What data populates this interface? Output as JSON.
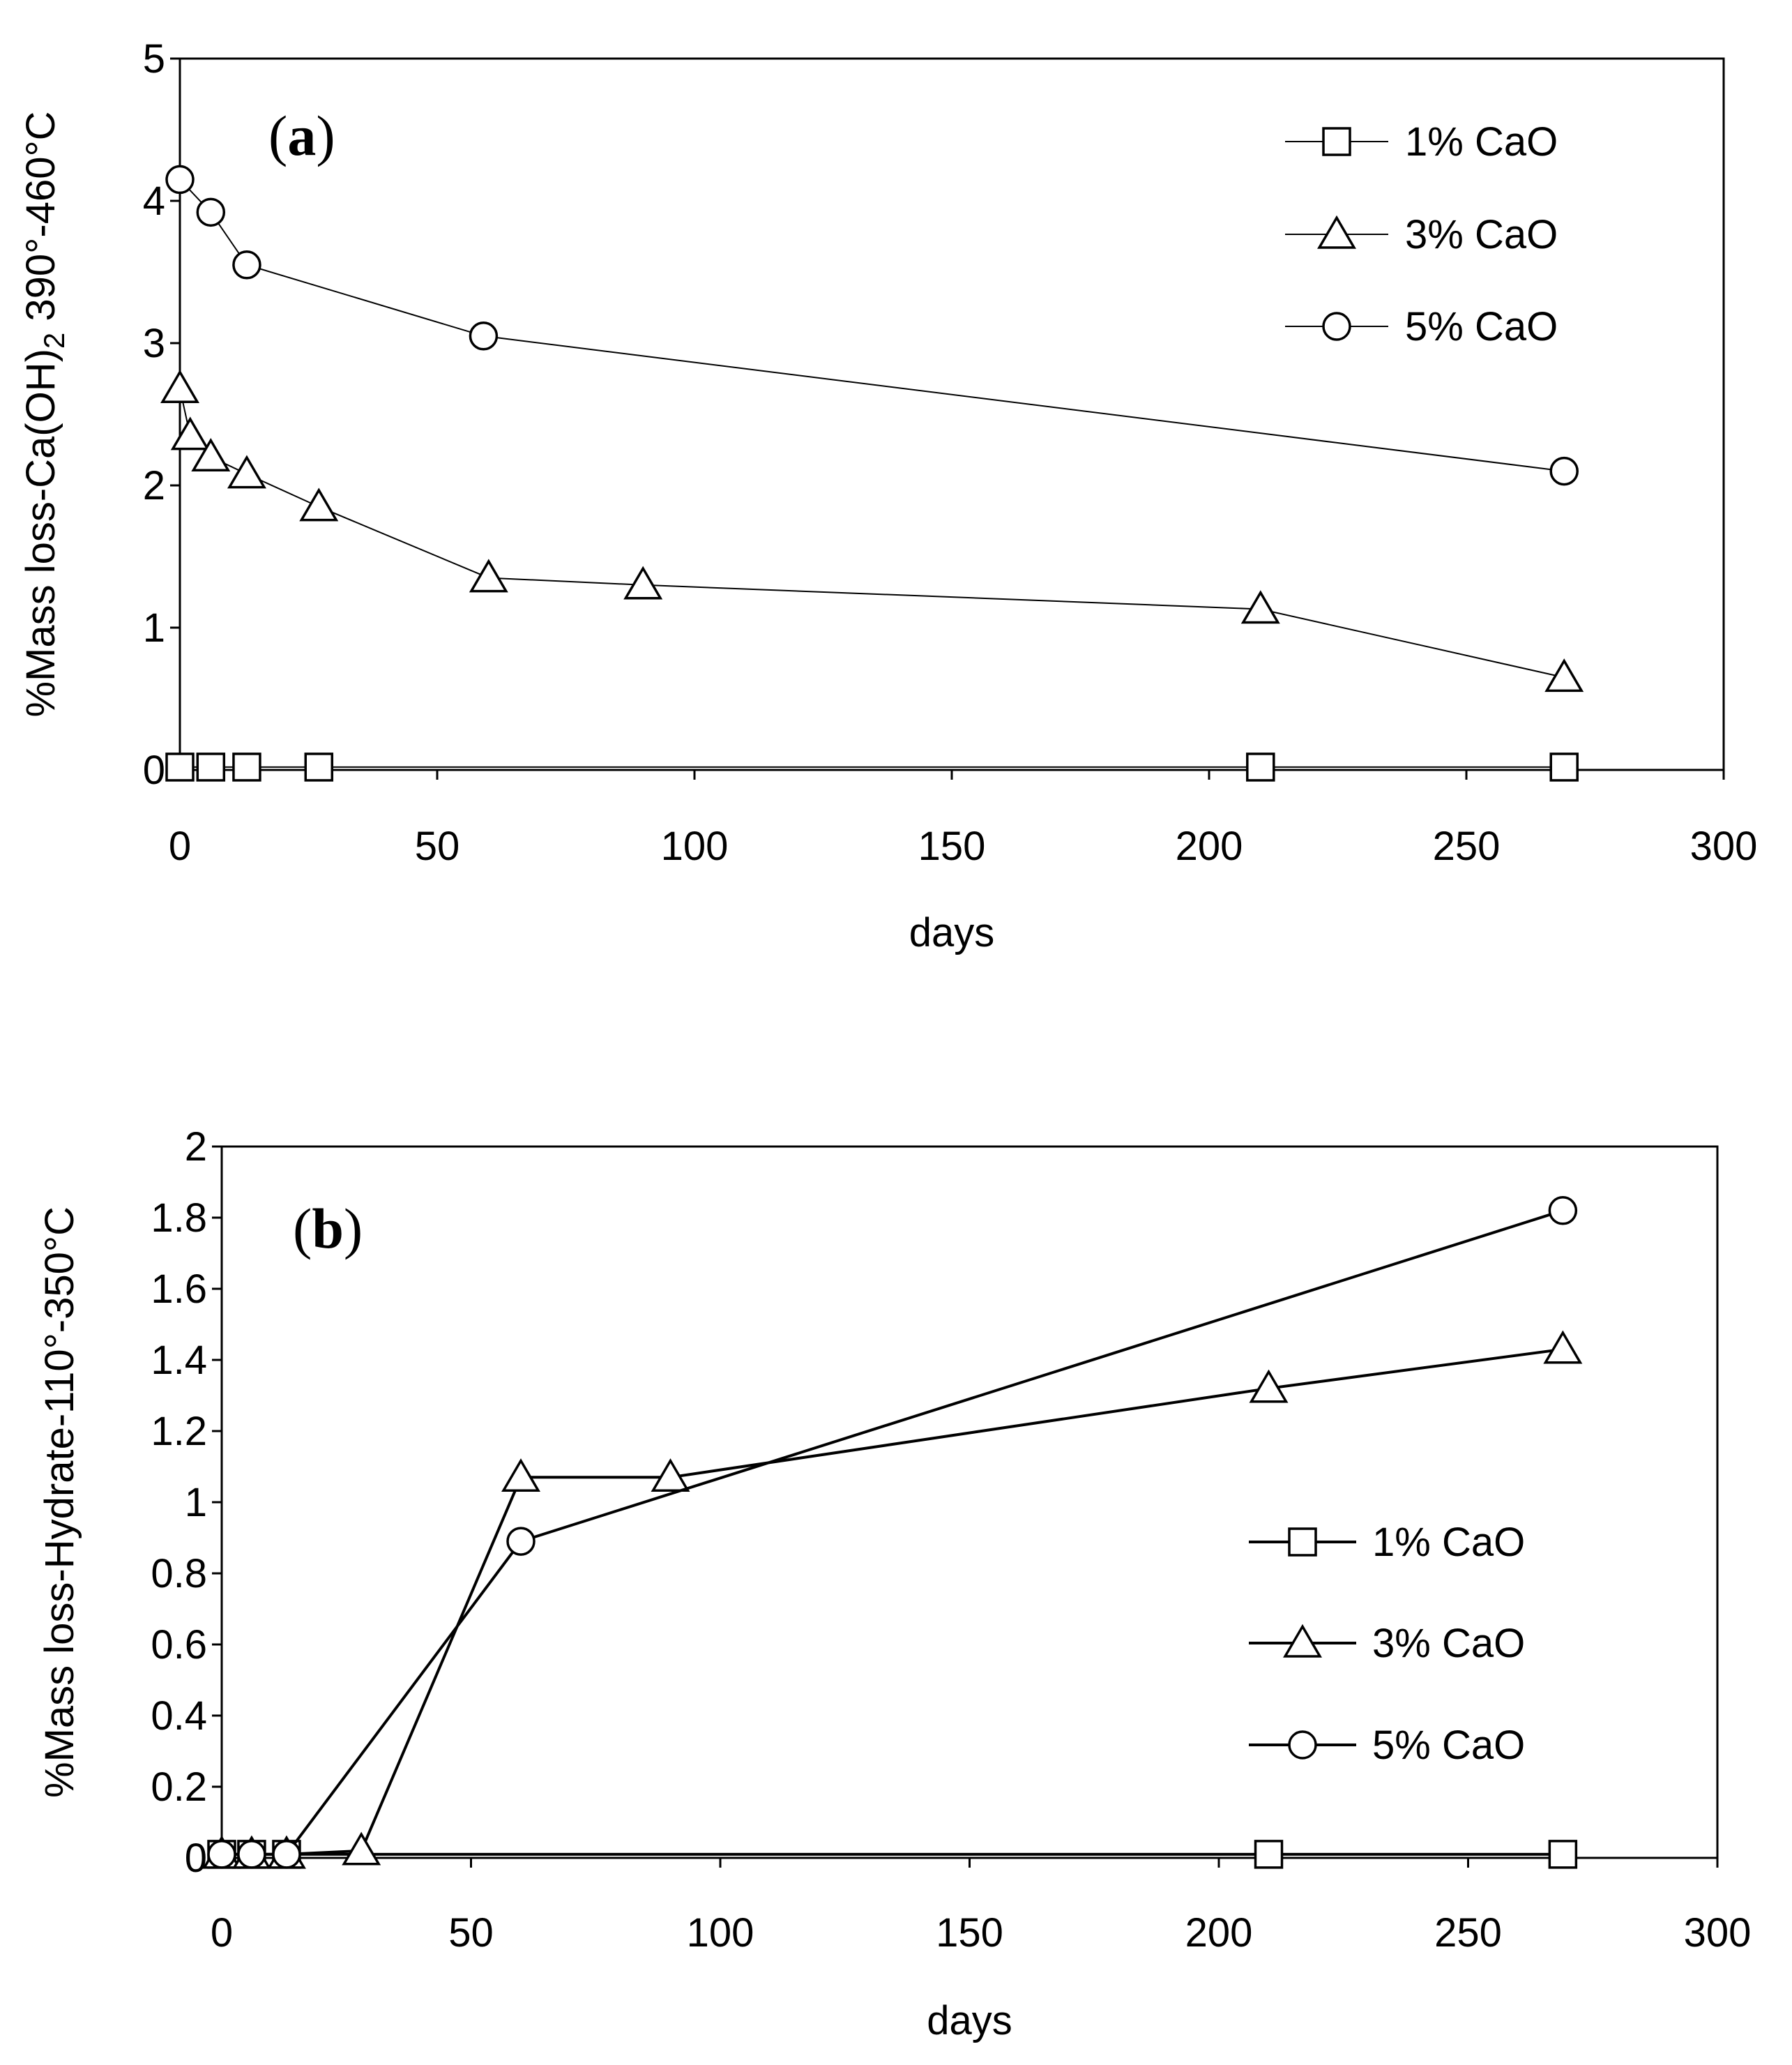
{
  "chart_data": [
    {
      "type": "line",
      "panel_label": "a",
      "title": "",
      "xlabel": "days",
      "ylabel": "%Mass loss-Ca(OH)",
      "ylabel_sub": "2",
      "ylabel_tail": " 390°-460°C",
      "xlim": [
        0,
        300
      ],
      "ylim": [
        0,
        5
      ],
      "xticks": [
        0,
        50,
        100,
        150,
        200,
        250,
        300
      ],
      "yticks": [
        0,
        1,
        2,
        3,
        4,
        5
      ],
      "ytick_labels": [
        "0",
        "1",
        "2",
        "3",
        "4",
        "5"
      ],
      "grid": false,
      "legend_position": "top-right",
      "series": [
        {
          "name": "1% CaO",
          "marker": "square",
          "x": [
            0,
            6,
            13,
            27,
            210,
            269
          ],
          "y": [
            0.02,
            0.02,
            0.02,
            0.02,
            0.02,
            0.02
          ]
        },
        {
          "name": "3% CaO",
          "marker": "triangle",
          "x": [
            0,
            2,
            6,
            13,
            27,
            60,
            90,
            210,
            269
          ],
          "y": [
            2.68,
            2.35,
            2.2,
            2.08,
            1.85,
            1.35,
            1.3,
            1.13,
            0.65
          ]
        },
        {
          "name": "5% CaO",
          "marker": "circle",
          "x": [
            0,
            6,
            13,
            59,
            269
          ],
          "y": [
            4.15,
            3.92,
            3.55,
            3.05,
            2.1
          ]
        }
      ]
    },
    {
      "type": "line",
      "panel_label": "b",
      "title": "",
      "xlabel": "days",
      "ylabel": "%Mass loss-Hydrate-110°-350°C",
      "xlim": [
        0,
        300
      ],
      "ylim": [
        0,
        2
      ],
      "xticks": [
        0,
        50,
        100,
        150,
        200,
        250,
        300
      ],
      "yticks": [
        0,
        0.2,
        0.4,
        0.6,
        0.8,
        1,
        1.2,
        1.4,
        1.6,
        1.8,
        2
      ],
      "ytick_labels": [
        "0",
        "0.2",
        "0.4",
        "0.6",
        "0.8",
        "1",
        "1.2",
        "1.4",
        "1.6",
        "1.8",
        "2"
      ],
      "grid": false,
      "legend_position": "center-right",
      "series": [
        {
          "name": "1% CaO",
          "marker": "square",
          "x": [
            0,
            6,
            13,
            210,
            269
          ],
          "y": [
            0.01,
            0.01,
            0.01,
            0.01,
            0.01
          ]
        },
        {
          "name": "3% CaO",
          "marker": "triangle",
          "x": [
            0,
            6,
            13,
            28,
            60,
            90,
            210,
            269
          ],
          "y": [
            0.01,
            0.01,
            0.01,
            0.02,
            1.07,
            1.07,
            1.32,
            1.43
          ]
        },
        {
          "name": "5% CaO",
          "marker": "circle",
          "x": [
            0,
            6,
            13,
            60,
            269
          ],
          "y": [
            0.01,
            0.01,
            0.01,
            0.89,
            1.82
          ]
        }
      ]
    }
  ]
}
